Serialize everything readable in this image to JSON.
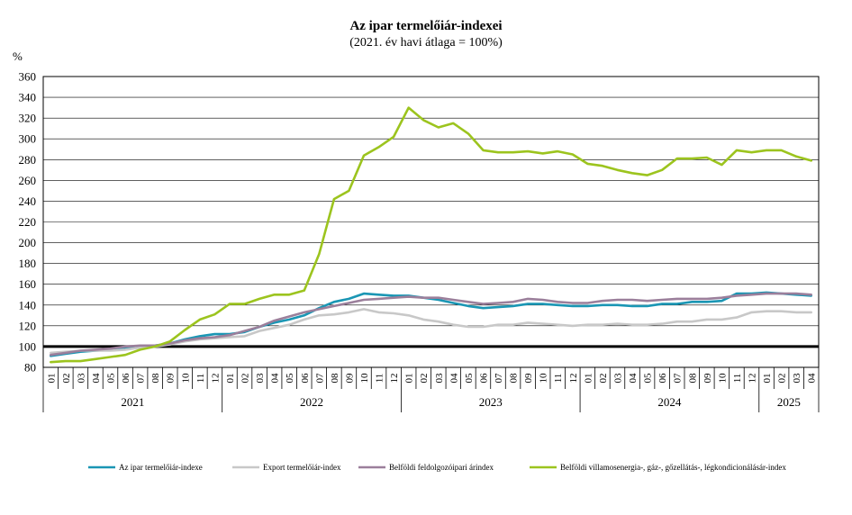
{
  "chart_data": {
    "type": "line",
    "title": "Az ipar termelőiár-indexei",
    "subtitle": "(2021. év havi átlaga = 100%)",
    "ylabel": "%",
    "ylim": [
      80,
      360
    ],
    "yticks": [
      80,
      100,
      120,
      140,
      160,
      180,
      200,
      220,
      240,
      260,
      280,
      300,
      320,
      340,
      360
    ],
    "grid": true,
    "legend_position": "bottom",
    "reference_line": 100,
    "years": [
      {
        "label": "2021",
        "months": 12
      },
      {
        "label": "2022",
        "months": 12
      },
      {
        "label": "2023",
        "months": 12
      },
      {
        "label": "2024",
        "months": 12
      },
      {
        "label": "2025",
        "months": 4
      }
    ],
    "x": [
      "01",
      "02",
      "03",
      "04",
      "05",
      "06",
      "07",
      "08",
      "09",
      "10",
      "11",
      "12",
      "01",
      "02",
      "03",
      "04",
      "05",
      "06",
      "07",
      "08",
      "09",
      "10",
      "11",
      "12",
      "01",
      "02",
      "03",
      "04",
      "05",
      "06",
      "07",
      "08",
      "09",
      "10",
      "11",
      "12",
      "01",
      "02",
      "03",
      "04",
      "05",
      "06",
      "07",
      "08",
      "09",
      "10",
      "11",
      "12",
      "01",
      "02",
      "03",
      "04"
    ],
    "series": [
      {
        "name": "Az ipar termelőiár-indexe",
        "color": "#1a96b4",
        "width": 2.6,
        "values": [
          91,
          93,
          95,
          96,
          97,
          98,
          100,
          101,
          103,
          107,
          110,
          112,
          112,
          114,
          119,
          123,
          126,
          130,
          137,
          143,
          146,
          151,
          150,
          149,
          149,
          147,
          145,
          142,
          139,
          137,
          138,
          139,
          141,
          141,
          140,
          139,
          139,
          140,
          140,
          139,
          139,
          141,
          141,
          143,
          143,
          144,
          151,
          151,
          152,
          151,
          150,
          149
        ]
      },
      {
        "name": "Export termelőiár-index",
        "color": "#c8c8c8",
        "width": 2.6,
        "values": [
          94,
          95,
          96,
          96,
          96,
          97,
          99,
          100,
          102,
          105,
          107,
          108,
          109,
          110,
          115,
          118,
          121,
          126,
          130,
          131,
          133,
          136,
          133,
          132,
          130,
          126,
          124,
          121,
          119,
          119,
          121,
          121,
          123,
          122,
          121,
          120,
          121,
          121,
          122,
          121,
          121,
          122,
          124,
          124,
          126,
          126,
          128,
          133,
          134,
          134,
          133,
          133
        ]
      },
      {
        "name": "Belföldi feldolgozóipari árindex",
        "color": "#9b7f9b",
        "width": 2.6,
        "values": [
          92,
          94,
          96,
          97,
          98,
          100,
          101,
          101,
          103,
          106,
          108,
          109,
          111,
          115,
          119,
          125,
          129,
          133,
          136,
          139,
          142,
          145,
          146,
          147,
          148,
          147,
          147,
          145,
          143,
          141,
          142,
          143,
          146,
          145,
          143,
          142,
          142,
          144,
          145,
          145,
          144,
          145,
          146,
          146,
          146,
          147,
          149,
          150,
          151,
          151,
          151,
          150
        ]
      },
      {
        "name": "Belföldi villamosenergia-, gáz-, gőzellátás-, légkondicionálásár-index",
        "color": "#9cc41e",
        "width": 2.6,
        "values": [
          85,
          86,
          86,
          88,
          90,
          92,
          97,
          100,
          105,
          116,
          126,
          131,
          141,
          141,
          146,
          150,
          150,
          154,
          189,
          242,
          250,
          284,
          292,
          302,
          330,
          318,
          311,
          315,
          305,
          289,
          287,
          287,
          288,
          286,
          288,
          285,
          276,
          274,
          270,
          267,
          265,
          270,
          281,
          281,
          282,
          275,
          289,
          287,
          289,
          289,
          283,
          279
        ]
      }
    ]
  }
}
